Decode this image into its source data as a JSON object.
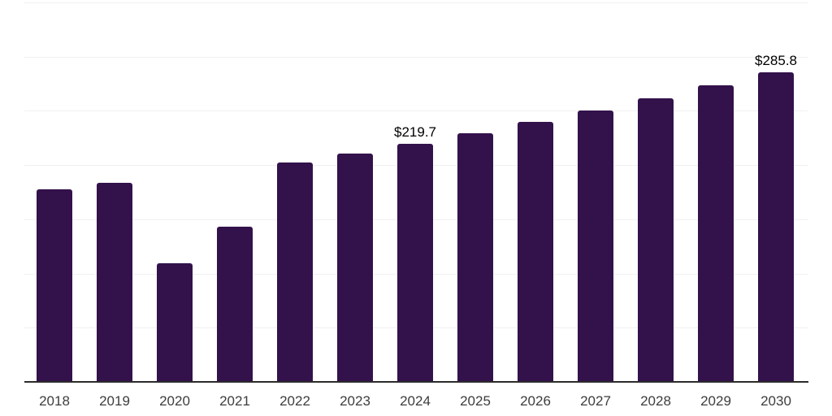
{
  "chart_data": {
    "type": "bar",
    "title": "",
    "xlabel": "",
    "ylabel": "",
    "categories": [
      "2018",
      "2019",
      "2020",
      "2021",
      "2022",
      "2023",
      "2024",
      "2025",
      "2026",
      "2027",
      "2028",
      "2029",
      "2030"
    ],
    "values": [
      177.6,
      183.6,
      109.1,
      143.0,
      202.6,
      210.5,
      219.7,
      229.5,
      239.8,
      250.5,
      261.7,
      273.4,
      285.8
    ],
    "data_labels": [
      null,
      null,
      null,
      null,
      null,
      null,
      "$219.7",
      null,
      null,
      null,
      null,
      null,
      "$285.8"
    ],
    "ylim": [
      0,
      350
    ],
    "gridline_step": 50,
    "grid": "horizontal",
    "legend": "none",
    "y_axis_tick_labels_visible": false,
    "colors": {
      "bar": "#33124b",
      "gridline": "#f0f0f1",
      "axis_line": "#2b2b2b",
      "tick_label": "#3d3d3d",
      "data_label": "#000000"
    }
  }
}
